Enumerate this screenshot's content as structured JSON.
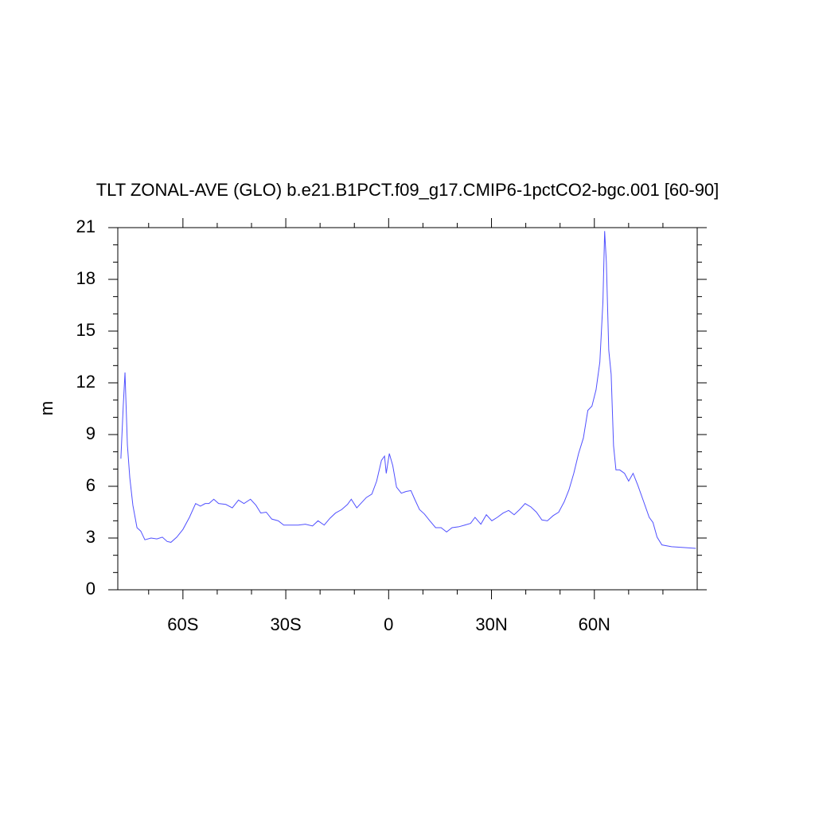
{
  "chart_data": {
    "type": "line",
    "title": "TLT ZONAL-AVE (GLO) b.e21.B1PCT.f09_g17.CMIP6-1pctCO2-bgc.001 [60-90]",
    "y_label": "m",
    "color": "#5050ff",
    "x": [
      -78.1,
      -77.4,
      -76.9,
      -76.2,
      -75.5,
      -74.6,
      -73.4,
      -72.3,
      -71.1,
      -69.3,
      -67.6,
      -66.0,
      -64.6,
      -63.5,
      -61.8,
      -60.0,
      -58.1,
      -56.3,
      -54.9,
      -53.5,
      -52.4,
      -51.0,
      -49.6,
      -47.5,
      -45.6,
      -43.8,
      -42.2,
      -40.3,
      -38.7,
      -37.3,
      -35.7,
      -34.1,
      -32.2,
      -30.6,
      -28.5,
      -26.4,
      -24.3,
      -22.2,
      -20.6,
      -18.8,
      -17.1,
      -15.5,
      -13.7,
      -12.0,
      -10.9,
      -9.3,
      -7.9,
      -6.5,
      -4.9,
      -3.5,
      -2.1,
      -1.2,
      -0.7,
      0.2,
      1.2,
      2.3,
      3.7,
      5.1,
      6.5,
      7.6,
      9.0,
      10.4,
      12.0,
      13.7,
      15.3,
      16.9,
      18.5,
      20.4,
      22.2,
      23.9,
      25.2,
      26.9,
      28.5,
      30.1,
      31.7,
      33.4,
      35.0,
      36.6,
      38.2,
      39.8,
      41.5,
      43.1,
      44.7,
      46.3,
      48.0,
      49.6,
      51.2,
      52.6,
      54.0,
      55.4,
      56.8,
      58.1,
      59.3,
      60.5,
      61.6,
      62.5,
      63.0,
      63.5,
      64.2,
      64.9,
      65.6,
      66.3,
      67.4,
      68.8,
      70.0,
      71.3,
      72.7,
      74.4,
      76.0,
      77.1,
      78.3,
      79.7,
      82.5,
      85.9,
      89.6
    ],
    "values": [
      7.6,
      10.7,
      12.6,
      8.4,
      6.5,
      4.9,
      3.6,
      3.4,
      2.9,
      3.0,
      2.95,
      3.05,
      2.8,
      2.75,
      3.05,
      3.5,
      4.2,
      5.0,
      4.85,
      5.0,
      5.0,
      5.25,
      5.0,
      4.95,
      4.75,
      5.2,
      5.0,
      5.25,
      4.9,
      4.45,
      4.5,
      4.1,
      4.0,
      3.75,
      3.75,
      3.75,
      3.8,
      3.7,
      4.0,
      3.75,
      4.15,
      4.45,
      4.65,
      4.95,
      5.25,
      4.75,
      5.05,
      5.35,
      5.55,
      6.3,
      7.5,
      7.75,
      6.75,
      7.9,
      7.2,
      5.95,
      5.6,
      5.7,
      5.75,
      5.25,
      4.65,
      4.4,
      4.0,
      3.6,
      3.6,
      3.35,
      3.6,
      3.65,
      3.75,
      3.85,
      4.2,
      3.8,
      4.35,
      4.0,
      4.2,
      4.45,
      4.6,
      4.35,
      4.65,
      5.0,
      4.8,
      4.5,
      4.05,
      4.0,
      4.3,
      4.5,
      5.1,
      5.8,
      6.75,
      7.9,
      8.8,
      10.4,
      10.65,
      11.6,
      13.2,
      16.7,
      20.8,
      19.0,
      13.9,
      12.5,
      8.35,
      6.95,
      6.95,
      6.75,
      6.3,
      6.75,
      6.05,
      5.1,
      4.2,
      3.9,
      3.05,
      2.6,
      2.5,
      2.45,
      2.4
    ],
    "xlim": [
      -79,
      90
    ],
    "xticks": [
      {
        "value": -60,
        "label": "60S"
      },
      {
        "value": -30,
        "label": "30S"
      },
      0,
      {
        "value": 30,
        "label": "30N"
      },
      {
        "value": 60,
        "label": "60N"
      }
    ],
    "xminorticks": [
      -70,
      -50,
      -40,
      -20,
      -10,
      10,
      20,
      40,
      50,
      70,
      80
    ],
    "ylim": [
      0,
      21
    ],
    "yticks": [
      0,
      3,
      6,
      9,
      12,
      15,
      18,
      21
    ],
    "yminorticks": [
      1,
      2,
      4,
      5,
      7,
      8,
      10,
      11,
      13,
      14,
      16,
      17,
      19,
      20
    ]
  }
}
